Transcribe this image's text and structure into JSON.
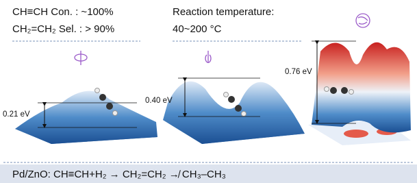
{
  "header": {
    "conversion": "CH≡CH Con.  :  ~100%",
    "selectivity": "CH₂=CH₂ Sel. :  > 90%",
    "temperature_label": "Reaction temperature:",
    "temperature_range": "40~200 °C"
  },
  "panels": [
    {
      "barrier": "0.21 eV"
    },
    {
      "barrier": "0.40 eV"
    },
    {
      "barrier": "0.76 eV"
    }
  ],
  "footer": {
    "reaction": "Pd/ZnO: CH≡CH+H₂ → CH₂=CH₂ ↛ CH₃–CH₃"
  }
}
